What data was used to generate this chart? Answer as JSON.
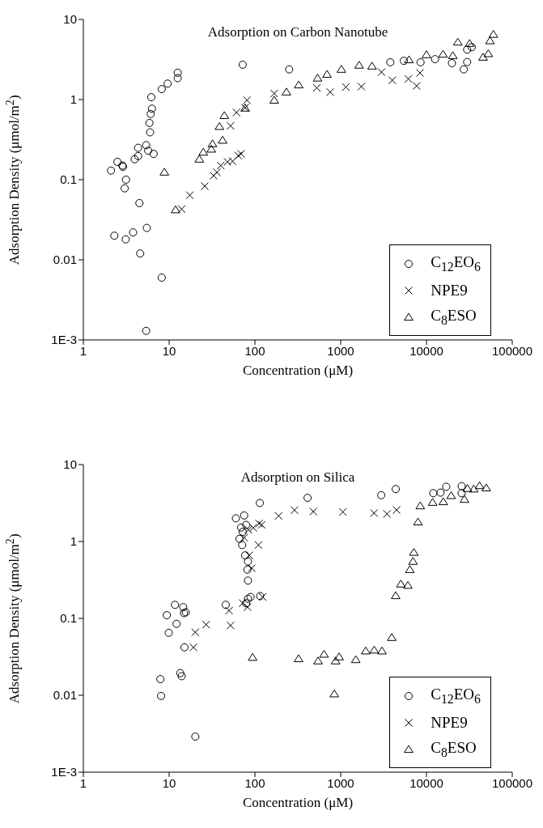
{
  "chart_data": [
    {
      "type": "scatter",
      "title": "Adsorption on Carbon Nanotube",
      "xlabel": "Concentration (μM)",
      "ylabel": "Adsorption Density (μmol/m$^{2}$)",
      "log": "xy",
      "legend": "bottom right",
      "xlim": [
        1,
        100000
      ],
      "xticks": [
        1,
        10,
        100,
        1000,
        10000,
        100000
      ],
      "ylim": [
        0.001,
        10
      ],
      "yticks": [
        {
          "value": 0.001,
          "label": "1E-3"
        },
        0.01,
        0.1,
        1,
        10
      ],
      "series": [
        {
          "name": "C$_{12}$EO$_{6}$",
          "color": "#000000",
          "marker": "circle",
          "x": [
            2.1,
            2.5,
            2.85,
            2.9,
            3.14,
            3.03,
            4.5,
            3.96,
            4.35,
            4.35,
            5.4,
            5.7,
            6.6,
            6.0,
            5.9,
            6.1,
            6.3,
            6.2,
            8.2,
            9.6,
            12.6,
            12.6,
            72,
            2.3,
            3.12,
            3.8,
            5.5,
            4.6,
            8.2,
            5.4,
            251,
            3790,
            5450,
            8530,
            12600,
            19800,
            29800,
            33700,
            29800,
            27200
          ],
          "values": [
            0.13,
            0.167,
            0.15,
            0.145,
            0.1,
            0.078,
            0.051,
            0.18,
            0.197,
            0.25,
            0.27,
            0.23,
            0.21,
            0.39,
            0.51,
            0.66,
            0.77,
            1.07,
            1.35,
            1.58,
            1.85,
            2.16,
            2.72,
            0.02,
            0.018,
            0.022,
            0.025,
            0.012,
            0.006,
            0.0013,
            2.38,
            2.92,
            3.04,
            2.92,
            3.19,
            2.85,
            4.2,
            4.5,
            2.94,
            2.38
          ]
        },
        {
          "name": "NPE9",
          "color": "#000000",
          "marker": "cross",
          "x": [
            14,
            17.4,
            26,
            33,
            36,
            40,
            48,
            55,
            64,
            69,
            52,
            61,
            77,
            81,
            168,
            527,
            754,
            1150,
            1740,
            2990,
            3990,
            6160,
            7660,
            8410
          ],
          "values": [
            0.043,
            0.064,
            0.083,
            0.112,
            0.124,
            0.15,
            0.167,
            0.17,
            0.2,
            0.21,
            0.47,
            0.69,
            0.79,
            0.98,
            1.19,
            1.4,
            1.24,
            1.43,
            1.45,
            2.2,
            1.74,
            1.81,
            1.48,
            2.15
          ]
        },
        {
          "name": "C$_{8}$ESO",
          "color": "#000000",
          "marker": "triangle",
          "x": [
            8.8,
            11.9,
            22.5,
            25,
            31,
            32,
            42,
            38.6,
            44,
            77,
            168,
            233,
            324,
            538,
            692,
            1020,
            1640,
            2320,
            6250,
            10000,
            15600,
            20300,
            23200,
            31800,
            45700,
            52600,
            55000,
            60300
          ],
          "values": [
            0.124,
            0.042,
            0.18,
            0.22,
            0.24,
            0.28,
            0.31,
            0.46,
            0.63,
            0.78,
            0.98,
            1.24,
            1.52,
            1.85,
            2.06,
            2.38,
            2.68,
            2.61,
            3.13,
            3.62,
            3.67,
            3.53,
            5.2,
            5.0,
            3.37,
            3.73,
            5.4,
            6.5
          ]
        }
      ]
    },
    {
      "type": "scatter",
      "title": "Adsorption on Silica",
      "xlabel": "Concentration (μM)",
      "ylabel": "Adsorption Density (μmol/m$^{2}$)",
      "log": "xy",
      "legend": "bottom right",
      "xlim": [
        1,
        100000
      ],
      "xticks": [
        1,
        10,
        100,
        1000,
        10000,
        100000
      ],
      "ylim": [
        0.001,
        10
      ],
      "yticks": [
        {
          "value": 0.001,
          "label": "1E-3"
        },
        0.01,
        0.1,
        1,
        10
      ],
      "series": [
        {
          "name": "C$_{12}$EO$_{6}$",
          "color": "#000000",
          "marker": "circle",
          "x": [
            7.9,
            8.05,
            20.2,
            13.5,
            14,
            15.1,
            9.9,
            12.2,
            9.4,
            11.7,
            14.6,
            15.6,
            14.9,
            45.7,
            83,
            81.7,
            83,
            77,
            83,
            89,
            115,
            79,
            60,
            75,
            79,
            69,
            72,
            66,
            71,
            114,
            411,
            2970,
            4380,
            12000,
            14600,
            17000,
            25700,
            25700
          ],
          "values": [
            0.0162,
            0.0098,
            0.0029,
            0.0194,
            0.0177,
            0.042,
            0.065,
            0.085,
            0.11,
            0.15,
            0.14,
            0.12,
            0.117,
            0.15,
            0.31,
            0.43,
            0.55,
            0.66,
            0.18,
            0.19,
            0.195,
            0.157,
            2.0,
            2.18,
            1.64,
            1.52,
            1.33,
            1.08,
            0.9,
            3.17,
            3.7,
            4.0,
            4.8,
            4.25,
            4.32,
            5.15,
            5.24,
            4.25
          ]
        },
        {
          "name": "NPE9",
          "color": "#000000",
          "marker": "cross",
          "x": [
            19.2,
            20.2,
            27,
            52,
            50,
            82,
            72,
            123,
            92,
            86,
            75,
            84,
            96,
            112,
            120,
            110,
            189,
            290,
            480,
            1060,
            2450,
            3470,
            4490
          ],
          "values": [
            0.042,
            0.066,
            0.083,
            0.081,
            0.126,
            0.14,
            0.158,
            0.19,
            0.45,
            0.66,
            1.12,
            1.42,
            1.51,
            1.71,
            1.65,
            0.9,
            2.15,
            2.55,
            2.45,
            2.42,
            2.34,
            2.28,
            2.57
          ]
        },
        {
          "name": "C$_{8}$ESO",
          "color": "#000000",
          "marker": "triangle",
          "x": [
            94,
            323,
            545,
            640,
            873,
            959,
            1500,
            1960,
            2460,
            3030,
            3940,
            842,
            4380,
            5030,
            6070,
            6400,
            6970,
            7130,
            7960,
            8460,
            11800,
            15700,
            19400,
            27700,
            30000,
            35600,
            41600,
            49700
          ],
          "values": [
            0.031,
            0.0298,
            0.0279,
            0.0341,
            0.0279,
            0.0315,
            0.029,
            0.0376,
            0.0386,
            0.0376,
            0.0563,
            0.0104,
            0.197,
            0.279,
            0.268,
            0.43,
            0.55,
            0.72,
            1.79,
            2.9,
            3.22,
            3.28,
            3.94,
            3.52,
            4.88,
            4.8,
            5.3,
            4.96
          ]
        }
      ]
    }
  ]
}
